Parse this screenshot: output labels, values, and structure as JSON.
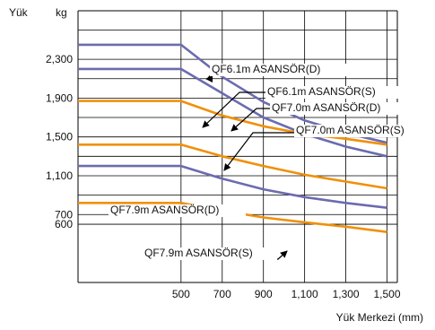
{
  "chart_data": {
    "type": "line",
    "title": "",
    "ylabel_left": "Yük",
    "ylabel_unit": "kg",
    "xlabel": "Yük Merkezi (mm)",
    "xlim": [
      0,
      1550
    ],
    "ylim": [
      0,
      2800
    ],
    "grid": true,
    "x_ticks": [
      500,
      700,
      900,
      1100,
      1300,
      1500
    ],
    "x_tick_labels": [
      "500",
      "700",
      "900",
      "1,100",
      "1,300",
      "1,500"
    ],
    "y_ticks": [
      600,
      700,
      1100,
      1500,
      1900,
      2300
    ],
    "y_tick_labels": [
      "600",
      "700",
      "1,100",
      "1,500",
      "1,900",
      "2,300"
    ],
    "colors": {
      "D": "#6b6bb0",
      "S": "#f0900a"
    },
    "series": [
      {
        "name": "QF6.1m ASANSÖR(D)",
        "color": "D",
        "x": [
          0,
          500,
          700,
          900,
          1100,
          1300,
          1500
        ],
        "y": [
          2450,
          2450,
          2120,
          1860,
          1670,
          1540,
          1440
        ]
      },
      {
        "name": "QF6.1m ASANSÖR(S)",
        "color": "D",
        "x": [
          0,
          500,
          700,
          900,
          1100,
          1300,
          1500
        ],
        "y": [
          2200,
          2200,
          1950,
          1700,
          1530,
          1400,
          1300
        ]
      },
      {
        "name": "QF7.0m ASANSÖR(D)",
        "color": "S",
        "x": [
          0,
          500,
          700,
          900,
          1100,
          1300,
          1500
        ],
        "y": [
          1870,
          1870,
          1720,
          1610,
          1530,
          1480,
          1420
        ]
      },
      {
        "name": "QF7.0m ASANSÖR(S)",
        "color": "S",
        "x": [
          0,
          500,
          700,
          900,
          1100,
          1300,
          1500
        ],
        "y": [
          1420,
          1420,
          1300,
          1200,
          1110,
          1040,
          970
        ]
      },
      {
        "name": "QF7.9m ASANSÖR(D)",
        "color": "D",
        "x": [
          0,
          500,
          700,
          900,
          1100,
          1300,
          1500
        ],
        "y": [
          1200,
          1200,
          1070,
          960,
          880,
          820,
          770
        ]
      },
      {
        "name": "QF7.9m ASANSÖR(S)",
        "color": "S",
        "x": [
          0,
          500,
          700,
          900,
          1100,
          1300,
          1500
        ],
        "y": [
          820,
          820,
          740,
          670,
          620,
          575,
          520
        ]
      }
    ],
    "annotations": [
      {
        "text": "QF6.1m ASANSÖR(D)",
        "series": 0
      },
      {
        "text": "QF6.1m ASANSÖR(S)",
        "series": 1
      },
      {
        "text": "QF7.0m ASANSÖR(D)",
        "series": 2
      },
      {
        "text": "QF7.0m ASANSÖR(S)",
        "series": 3
      },
      {
        "text": "QF7.9m ASANSÖR(D)",
        "series": 4
      },
      {
        "text": "QF7.9m ASANSÖR(S)",
        "series": 5
      }
    ]
  }
}
